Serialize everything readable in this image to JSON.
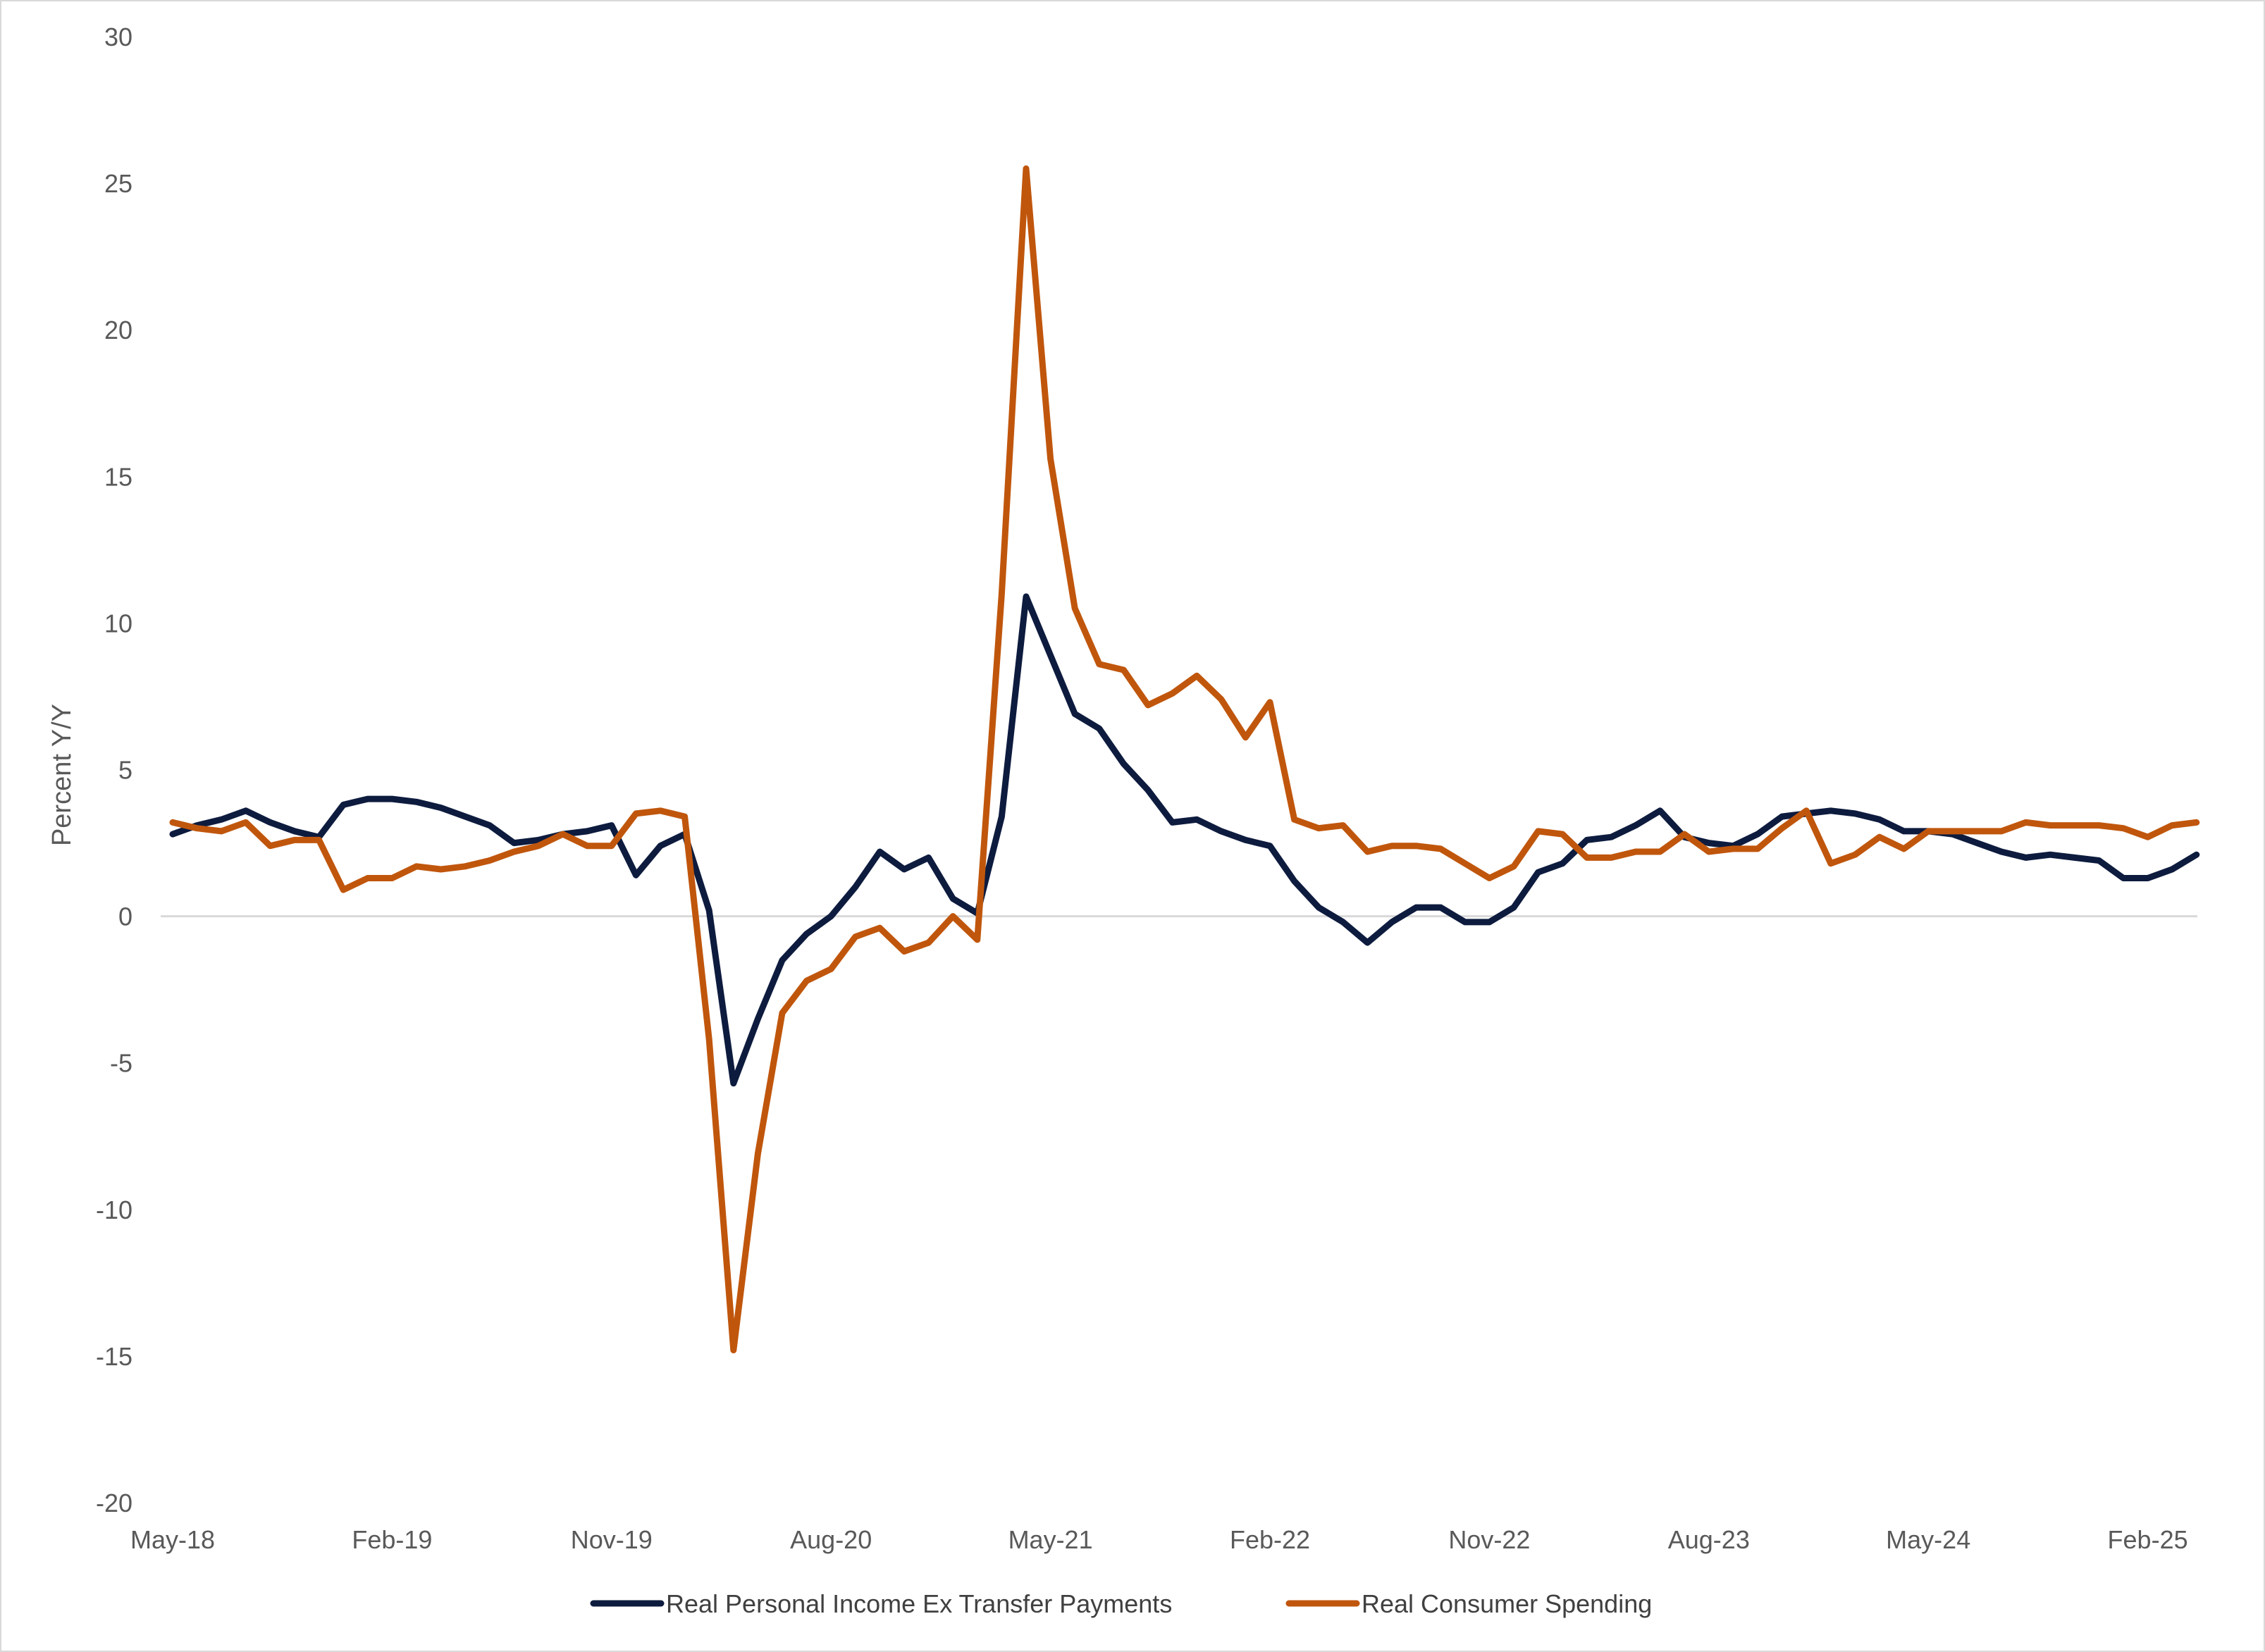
{
  "chart_data": {
    "type": "line",
    "ylabel": "Percent Y/Y",
    "ylim": [
      -20,
      30
    ],
    "yticks": [
      "30",
      "25",
      "20",
      "15",
      "10",
      "5",
      "0",
      "-5",
      "-10",
      "-15",
      "-20"
    ],
    "ytick_values": [
      30,
      25,
      20,
      15,
      10,
      5,
      0,
      -5,
      -10,
      -15,
      -20
    ],
    "xtick_labels": [
      "May-18",
      "Feb-19",
      "Nov-19",
      "Aug-20",
      "May-21",
      "Feb-22",
      "Nov-22",
      "Aug-23",
      "May-24",
      "Feb-25"
    ],
    "xtick_indices": [
      0,
      9,
      18,
      27,
      36,
      45,
      54,
      63,
      72,
      81
    ],
    "x_start": "May-18",
    "x_end": "Jun-25",
    "grid": false,
    "zero_line": true,
    "legend_position": "bottom",
    "series": [
      {
        "name": "Real Personal Income Ex Transfer Payments",
        "color": "#0d1b3e",
        "values": [
          2.8,
          3.1,
          3.3,
          3.6,
          3.2,
          2.9,
          2.7,
          3.8,
          4.0,
          4.0,
          3.9,
          3.7,
          3.4,
          3.1,
          2.5,
          2.6,
          2.8,
          2.9,
          3.1,
          1.4,
          2.4,
          2.8,
          0.2,
          -5.7,
          -3.5,
          -1.5,
          -0.6,
          0.0,
          1.0,
          2.2,
          1.6,
          2.0,
          0.6,
          0.1,
          3.4,
          10.9,
          8.9,
          6.9,
          6.4,
          5.2,
          4.3,
          3.2,
          3.3,
          2.9,
          2.6,
          2.4,
          1.2,
          0.3,
          -0.2,
          -0.9,
          -0.2,
          0.3,
          0.3,
          -0.2,
          -0.2,
          0.3,
          1.5,
          1.8,
          2.6,
          2.7,
          3.1,
          3.6,
          2.7,
          2.5,
          2.4,
          2.8,
          3.4,
          3.5,
          3.6,
          3.5,
          3.3,
          2.9,
          2.9,
          2.8,
          2.5,
          2.2,
          2.0,
          2.1,
          2.0,
          1.9,
          1.3,
          1.3,
          1.6,
          2.1
        ]
      },
      {
        "name": "Real Consumer Spending",
        "color": "#c0560c",
        "values": [
          3.2,
          3.0,
          2.9,
          3.2,
          2.4,
          2.6,
          2.6,
          0.9,
          1.3,
          1.3,
          1.7,
          1.6,
          1.7,
          1.9,
          2.2,
          2.4,
          2.8,
          2.4,
          2.4,
          3.5,
          3.6,
          3.4,
          -4.2,
          -14.8,
          -8.1,
          -3.3,
          -2.2,
          -1.8,
          -0.7,
          -0.4,
          -1.2,
          -0.9,
          0.0,
          -0.8,
          11.0,
          25.5,
          15.6,
          10.5,
          8.6,
          8.4,
          7.2,
          7.6,
          8.2,
          7.4,
          6.1,
          7.3,
          3.3,
          3.0,
          3.1,
          2.2,
          2.4,
          2.4,
          2.3,
          1.8,
          1.3,
          1.7,
          2.9,
          2.8,
          2.0,
          2.0,
          2.2,
          2.2,
          2.8,
          2.2,
          2.3,
          2.3,
          3.0,
          3.6,
          1.8,
          2.1,
          2.7,
          2.3,
          2.9,
          2.9,
          2.9,
          2.9,
          3.2,
          3.1,
          3.1,
          3.1,
          3.0,
          2.7,
          3.1,
          3.2
        ]
      }
    ]
  }
}
